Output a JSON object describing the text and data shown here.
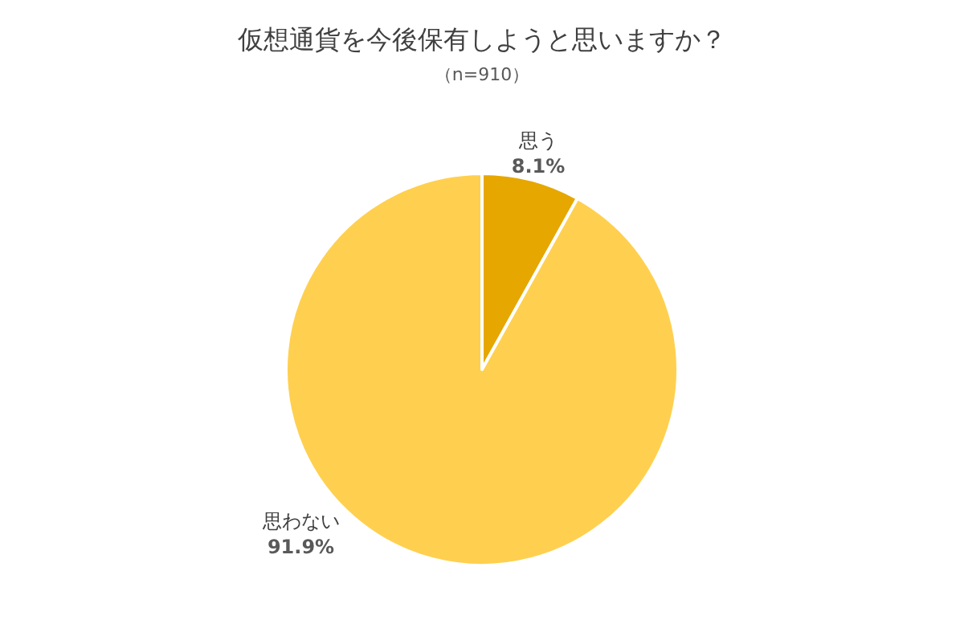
{
  "chart_data": {
    "type": "pie",
    "title": "仮想通貨を今後保有しようと思いますか？",
    "subtitle": "（n=910）",
    "categories": [
      "思う",
      "思わない"
    ],
    "values": [
      8.1,
      91.9
    ],
    "colors": [
      "#e6a700",
      "#ffd04f"
    ],
    "value_labels": [
      "8.1%",
      "91.9%"
    ]
  }
}
